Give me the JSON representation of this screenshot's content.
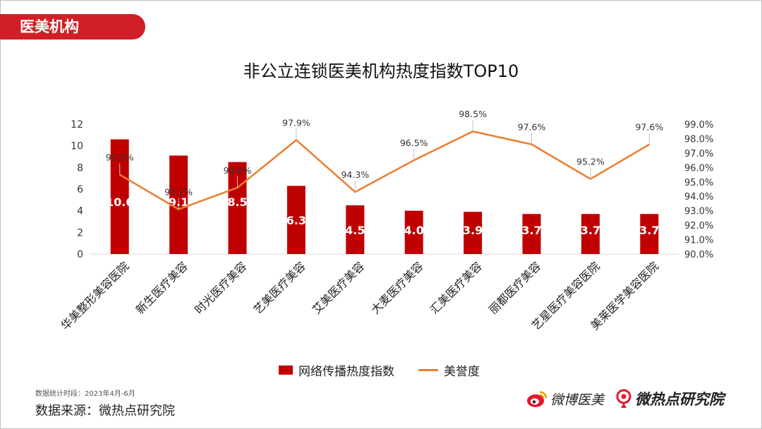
{
  "section_tag": "医美机构",
  "chart_data": {
    "type": "bar",
    "title": "非公立连锁医美机构热度指数TOP10",
    "categories": [
      "华美整形美容医院",
      "新生医疗美容",
      "时光医疗美容",
      "艺美医疗美容",
      "艾美医疗美容",
      "大麦医疗美容",
      "汇美医疗美容",
      "丽都医疗美容",
      "艺星医疗美容医院",
      "美莱医学美容医院"
    ],
    "series": [
      {
        "name": "网络传播热度指数",
        "type": "bar",
        "axis": "left",
        "values": [
          10.6,
          9.1,
          8.5,
          6.3,
          4.5,
          4.0,
          3.9,
          3.7,
          3.7,
          3.7
        ],
        "labels": [
          "10.6",
          "9.1",
          "8.5",
          "6.3",
          "4.5",
          "4.0",
          "3.9",
          "3.7",
          "3.7",
          "3.7"
        ]
      },
      {
        "name": "美誉度",
        "type": "line",
        "axis": "right",
        "values": [
          95.5,
          93.1,
          94.6,
          97.9,
          94.3,
          96.5,
          98.5,
          97.6,
          95.2,
          97.6
        ],
        "labels": [
          "95.5%",
          "93.1%",
          "94.6%",
          "97.9%",
          "94.3%",
          "96.5%",
          "98.5%",
          "97.6%",
          "95.2%",
          "97.6%"
        ]
      }
    ],
    "y_left": {
      "min": 0,
      "max": 12,
      "ticks": [
        "0",
        "2",
        "4",
        "6",
        "8",
        "10",
        "12"
      ]
    },
    "y_right": {
      "min": 90,
      "max": 99,
      "ticks": [
        "90.0%",
        "91.0%",
        "92.0%",
        "93.0%",
        "94.0%",
        "95.0%",
        "96.0%",
        "97.0%",
        "98.0%",
        "99.0%"
      ]
    },
    "grid": false,
    "legend_position": "bottom",
    "colors": {
      "bar": "#c00000",
      "line": "#ed7d31"
    }
  },
  "footer": {
    "stat_period": "数据统计时段：2023年4月-6月",
    "source": "数据来源：微热点研究院",
    "logo1_text": "微博医美",
    "logo2_text": "微热点研究院"
  }
}
